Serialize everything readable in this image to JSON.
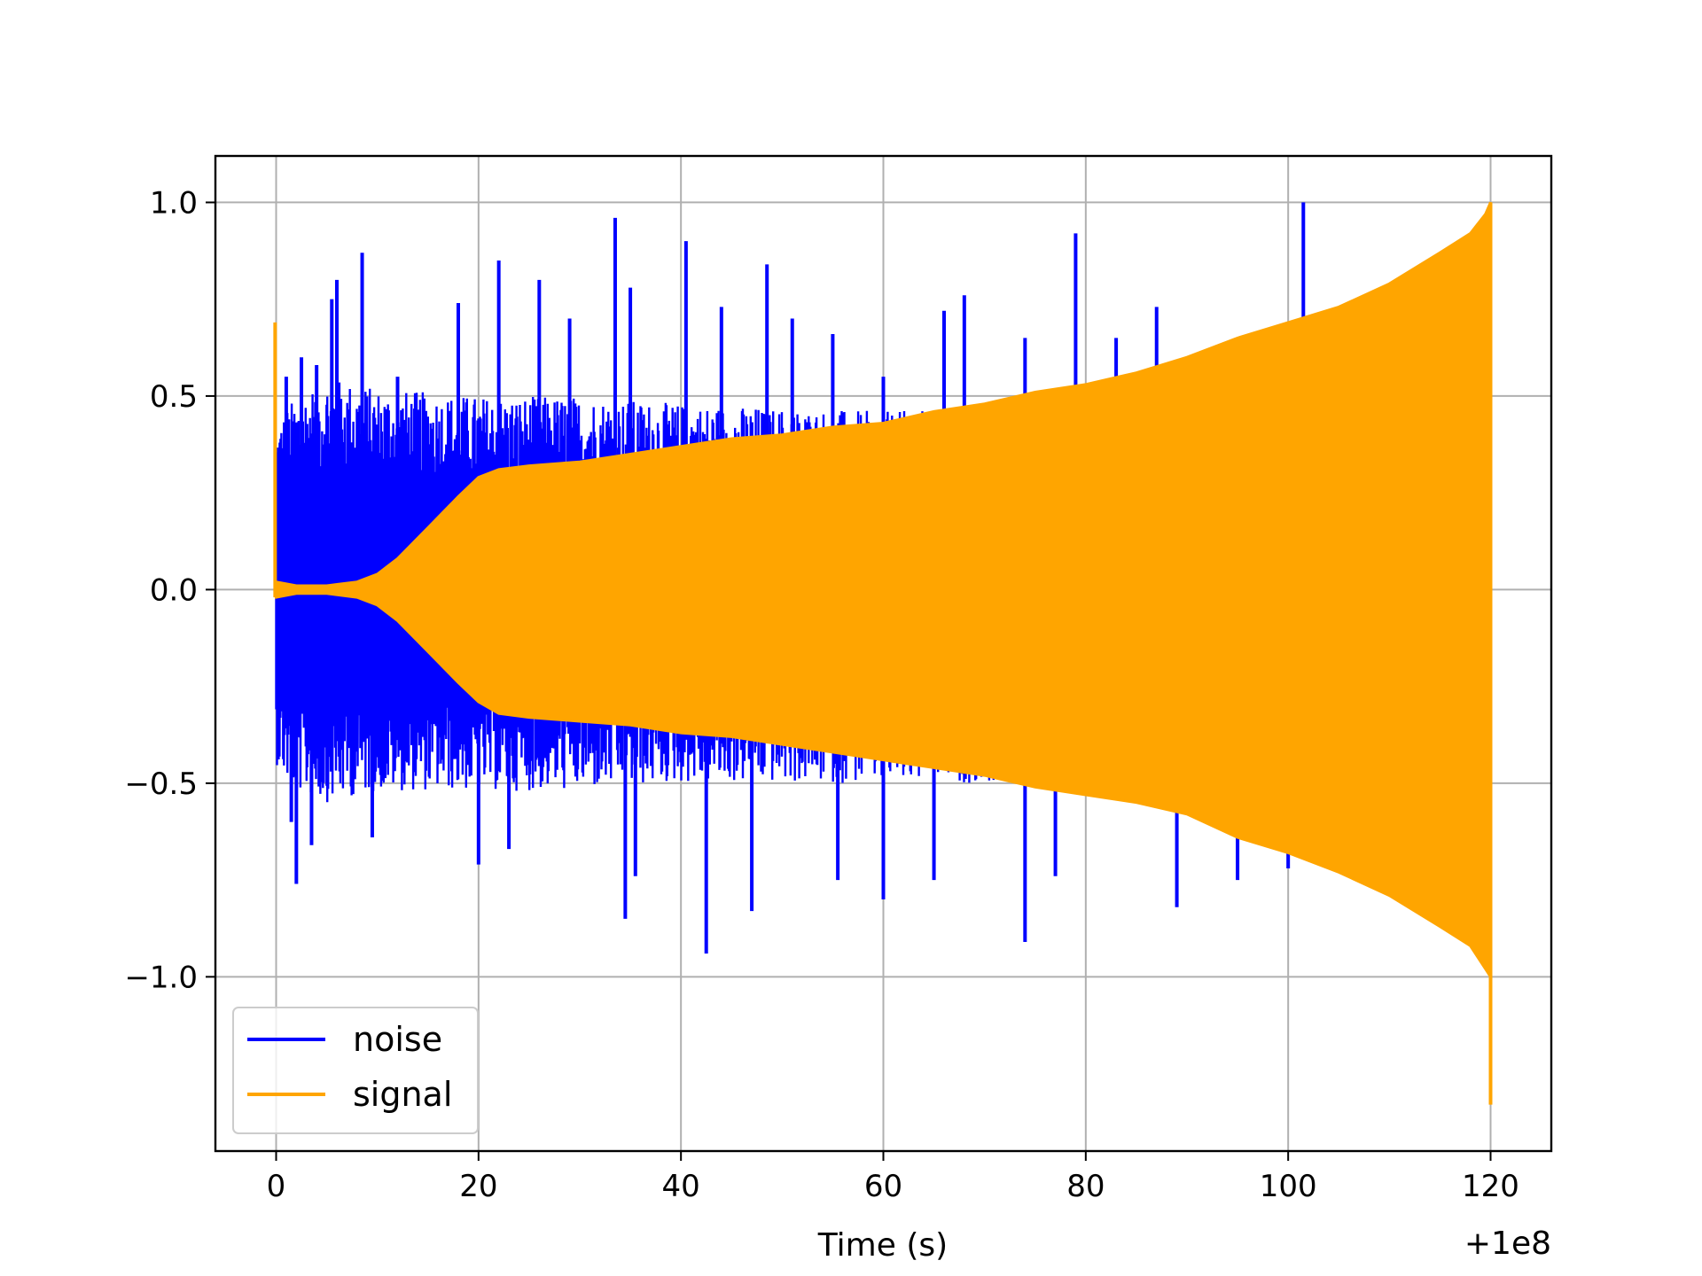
{
  "chart_data": {
    "type": "line",
    "title": "",
    "xlabel": "Time (s)",
    "ylabel": "",
    "x_offset_label": "+1e8",
    "xlim": [
      -6,
      126
    ],
    "ylim": [
      -1.45,
      1.12
    ],
    "xticks": [
      0,
      20,
      40,
      60,
      80,
      100,
      120
    ],
    "xtick_labels": [
      "0",
      "20",
      "40",
      "60",
      "80",
      "100",
      "120"
    ],
    "yticks": [
      1.0,
      0.5,
      0.0,
      -0.5,
      -1.0
    ],
    "ytick_labels": [
      "1.0",
      "0.5",
      "0.0",
      "−0.5",
      "−1.0"
    ],
    "grid": true,
    "legend": {
      "position": "lower-left"
    },
    "series": [
      {
        "name": "noise",
        "color": "#0000ff",
        "envelope": {
          "x": [
            0,
            1,
            2,
            5,
            10,
            20,
            30,
            40,
            50,
            60,
            70,
            80,
            90,
            100,
            110,
            120
          ],
          "upper": [
            0.42,
            0.47,
            0.5,
            0.55,
            0.52,
            0.5,
            0.5,
            0.48,
            0.47,
            0.46,
            0.47,
            0.48,
            0.47,
            0.47,
            0.46,
            0.46
          ],
          "lower": [
            -0.45,
            -0.5,
            -0.52,
            -0.55,
            -0.52,
            -0.52,
            -0.52,
            -0.5,
            -0.5,
            -0.5,
            -0.5,
            -0.52,
            -0.53,
            -0.52,
            -0.52,
            -0.52
          ]
        },
        "spikes": [
          {
            "x": 1.0,
            "y": 0.55
          },
          {
            "x": 2.5,
            "y": 0.6
          },
          {
            "x": 4.0,
            "y": 0.58
          },
          {
            "x": 5.5,
            "y": 0.75
          },
          {
            "x": 6.0,
            "y": 0.8
          },
          {
            "x": 8.5,
            "y": 0.87
          },
          {
            "x": 12.0,
            "y": 0.55
          },
          {
            "x": 18.0,
            "y": 0.74
          },
          {
            "x": 22.0,
            "y": 0.85
          },
          {
            "x": 26.0,
            "y": 0.8
          },
          {
            "x": 29.0,
            "y": 0.7
          },
          {
            "x": 33.5,
            "y": 0.96
          },
          {
            "x": 35.0,
            "y": 0.78
          },
          {
            "x": 40.5,
            "y": 0.9
          },
          {
            "x": 44.0,
            "y": 0.73
          },
          {
            "x": 48.5,
            "y": 0.84
          },
          {
            "x": 51.0,
            "y": 0.7
          },
          {
            "x": 55.0,
            "y": 0.66
          },
          {
            "x": 60.0,
            "y": 0.55
          },
          {
            "x": 66.0,
            "y": 0.72
          },
          {
            "x": 68.0,
            "y": 0.76
          },
          {
            "x": 74.0,
            "y": 0.65
          },
          {
            "x": 79.0,
            "y": 0.92
          },
          {
            "x": 83.0,
            "y": 0.65
          },
          {
            "x": 87.0,
            "y": 0.73
          },
          {
            "x": 101.5,
            "y": 1.0
          },
          {
            "x": 1.5,
            "y": -0.6
          },
          {
            "x": 2.0,
            "y": -0.76
          },
          {
            "x": 3.5,
            "y": -0.66
          },
          {
            "x": 9.5,
            "y": -0.64
          },
          {
            "x": 20.0,
            "y": -0.71
          },
          {
            "x": 23.0,
            "y": -0.67
          },
          {
            "x": 34.5,
            "y": -0.85
          },
          {
            "x": 35.5,
            "y": -0.74
          },
          {
            "x": 42.5,
            "y": -0.94
          },
          {
            "x": 47.0,
            "y": -0.83
          },
          {
            "x": 55.5,
            "y": -0.75
          },
          {
            "x": 60.0,
            "y": -0.8
          },
          {
            "x": 65.0,
            "y": -0.75
          },
          {
            "x": 74.0,
            "y": -0.91
          },
          {
            "x": 77.0,
            "y": -0.74
          },
          {
            "x": 89.0,
            "y": -0.82
          },
          {
            "x": 95.0,
            "y": -0.75
          },
          {
            "x": 100.0,
            "y": -0.72
          }
        ]
      },
      {
        "name": "signal",
        "color": "#ffa500",
        "envelope": {
          "x": [
            0,
            2,
            5,
            8,
            10,
            12,
            15,
            18,
            20,
            22,
            25,
            30,
            35,
            40,
            45,
            50,
            55,
            60,
            65,
            70,
            75,
            80,
            85,
            90,
            95,
            100,
            105,
            110,
            115,
            118,
            119.5,
            120
          ],
          "upper": [
            0.02,
            0.01,
            0.01,
            0.02,
            0.04,
            0.08,
            0.16,
            0.24,
            0.29,
            0.31,
            0.32,
            0.33,
            0.35,
            0.37,
            0.39,
            0.4,
            0.42,
            0.43,
            0.46,
            0.48,
            0.51,
            0.53,
            0.56,
            0.6,
            0.65,
            0.69,
            0.73,
            0.79,
            0.87,
            0.92,
            0.97,
            1.0
          ],
          "lower": [
            -0.02,
            -0.01,
            -0.01,
            -0.02,
            -0.04,
            -0.08,
            -0.16,
            -0.24,
            -0.29,
            -0.32,
            -0.33,
            -0.34,
            -0.35,
            -0.37,
            -0.38,
            -0.4,
            -0.42,
            -0.44,
            -0.46,
            -0.48,
            -0.51,
            -0.53,
            -0.55,
            -0.58,
            -0.64,
            -0.68,
            -0.73,
            -0.79,
            -0.87,
            -0.92,
            -0.98,
            -1.0
          ]
        },
        "events": [
          {
            "x": -0.1,
            "y_min": -0.02,
            "y_max": 0.69
          },
          {
            "x": 120.0,
            "y_min": -1.33,
            "y_max": 1.0
          }
        ]
      }
    ]
  }
}
